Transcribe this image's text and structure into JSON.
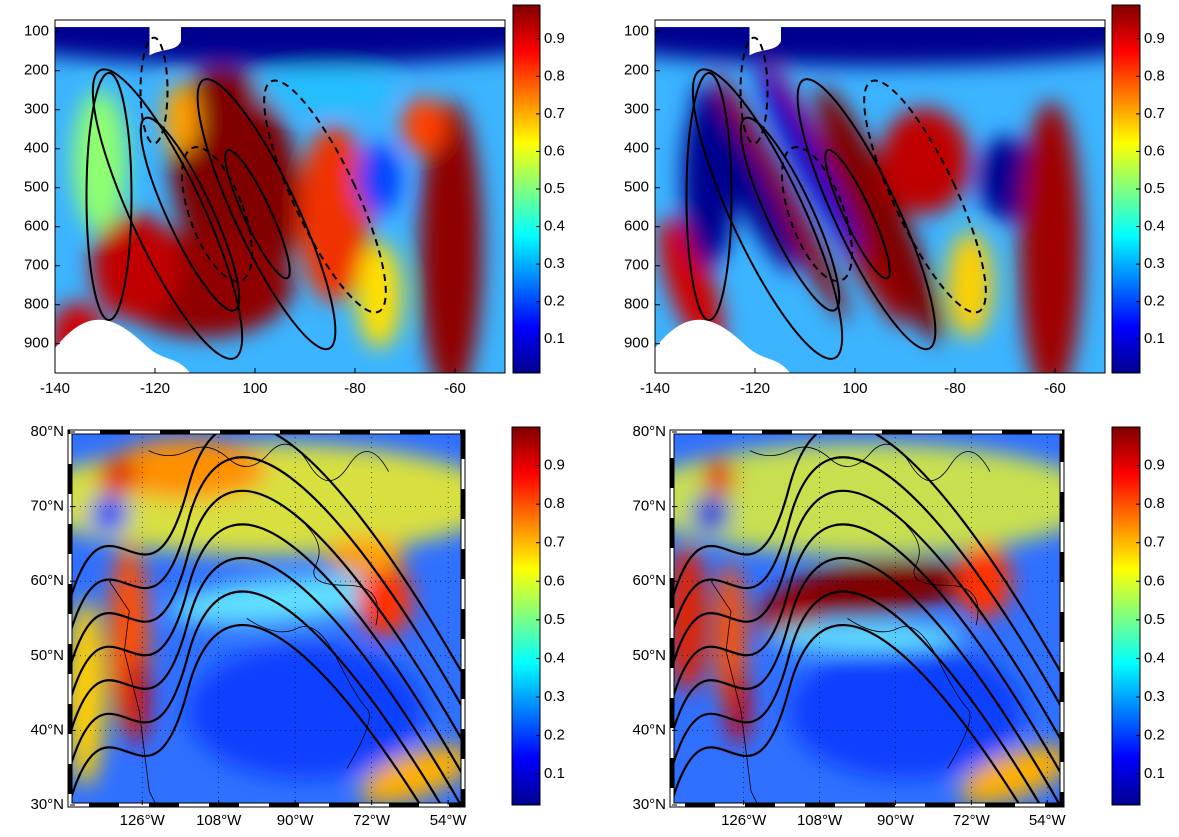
{
  "chart_data": [
    {
      "type": "contour",
      "xlim": [
        -140,
        -50
      ],
      "xticks": [
        -140,
        -120,
        {
          "value": -100,
          "label": "100"
        },
        -80,
        -60
      ],
      "ylim": [
        975,
        70
      ],
      "yticks": [
        100,
        200,
        300,
        400,
        500,
        600,
        700,
        800,
        900
      ],
      "clim": [
        0.01,
        0.99
      ],
      "cticks": [
        0.1,
        0.2,
        0.3,
        0.4,
        0.5,
        0.6,
        0.7,
        0.8,
        0.9
      ]
    },
    {
      "type": "contour",
      "xlim": [
        -140,
        -50
      ],
      "xticks": [
        -140,
        -120,
        {
          "value": -100,
          "label": "100"
        },
        -80,
        -60
      ],
      "ylim": [
        975,
        70
      ],
      "yticks": [
        100,
        200,
        300,
        400,
        500,
        600,
        700,
        800,
        900
      ],
      "clim": [
        0.01,
        0.99
      ],
      "cticks": [
        0.1,
        0.2,
        0.3,
        0.4,
        0.5,
        0.6,
        0.7,
        0.8,
        0.9
      ]
    },
    {
      "type": "map",
      "xlim": [
        -143,
        -50.5
      ],
      "xticks": [
        {
          "value": -126,
          "label": "126°W"
        },
        {
          "value": -108,
          "label": "108°W"
        },
        {
          "value": -90,
          "label": "90°W"
        },
        {
          "value": -72,
          "label": "72°W"
        },
        {
          "value": -54,
          "label": "54°W"
        }
      ],
      "ylim": [
        30,
        80
      ],
      "yticks": [
        {
          "value": 30,
          "label": "30°N"
        },
        {
          "value": 40,
          "label": "40°N"
        },
        {
          "value": 50,
          "label": "50°N"
        },
        {
          "value": 60,
          "label": "60°N"
        },
        {
          "value": 70,
          "label": "70°N"
        },
        {
          "value": 80,
          "label": "80°N"
        }
      ],
      "clim": [
        0.02,
        1.0
      ],
      "cticks": [
        0.1,
        0.2,
        0.3,
        0.4,
        0.5,
        0.6,
        0.7,
        0.8,
        0.9
      ]
    },
    {
      "type": "map",
      "xlim": [
        -143,
        -50.5
      ],
      "xticks": [
        {
          "value": -126,
          "label": "126°W"
        },
        {
          "value": -108,
          "label": "108°W"
        },
        {
          "value": -90,
          "label": "90°W"
        },
        {
          "value": -72,
          "label": "72°W"
        },
        {
          "value": -54,
          "label": "54°W"
        }
      ],
      "ylim": [
        30,
        80
      ],
      "yticks": [
        {
          "value": 30,
          "label": "30°N"
        },
        {
          "value": 40,
          "label": "40°N"
        },
        {
          "value": 50,
          "label": "50°N"
        },
        {
          "value": 60,
          "label": "60°N"
        },
        {
          "value": 70,
          "label": "70°N"
        },
        {
          "value": 80,
          "label": "80°N"
        }
      ],
      "clim": [
        0.02,
        1.0
      ],
      "cticks": [
        0.1,
        0.2,
        0.3,
        0.4,
        0.5,
        0.6,
        0.7,
        0.8,
        0.9
      ]
    }
  ]
}
